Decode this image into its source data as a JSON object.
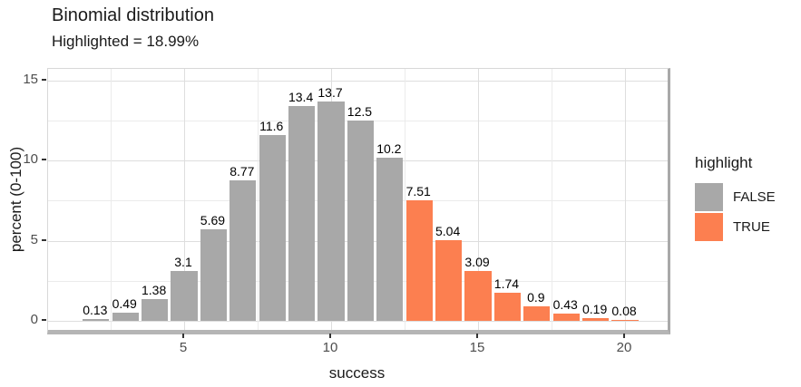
{
  "title": "Binomial distribution",
  "subtitle": "Highlighted = 18.99%",
  "chart_data": {
    "type": "bar",
    "title": "Binomial distribution",
    "subtitle": "Highlighted = 18.99%",
    "xlabel": "success",
    "ylabel": "percent (0-100)",
    "x": [
      2,
      3,
      4,
      5,
      6,
      7,
      8,
      9,
      10,
      11,
      12,
      13,
      14,
      15,
      16,
      17,
      18,
      19,
      20
    ],
    "values": [
      0.13,
      0.49,
      1.38,
      3.1,
      5.69,
      8.77,
      11.6,
      13.4,
      13.7,
      12.5,
      10.2,
      7.51,
      5.04,
      3.09,
      1.74,
      0.9,
      0.43,
      0.19,
      0.08
    ],
    "bar_labels": [
      "0.13",
      "0.49",
      "1.38",
      "3.1",
      "5.69",
      "8.77",
      "11.6",
      "13.4",
      "13.7",
      "12.5",
      "10.2",
      "7.51",
      "5.04",
      "3.09",
      "1.74",
      "0.9",
      "0.43",
      "0.19",
      "0.08"
    ],
    "highlight": [
      false,
      false,
      false,
      false,
      false,
      false,
      false,
      false,
      false,
      false,
      false,
      true,
      true,
      true,
      true,
      true,
      true,
      true,
      true
    ],
    "x_ticks": [
      5,
      10,
      15,
      20
    ],
    "y_ticks": [
      0,
      5,
      10,
      15
    ],
    "x_minor_ticks": [
      2.5,
      7.5,
      12.5,
      17.5
    ],
    "y_minor_ticks": [
      2.5,
      7.5,
      12.5
    ],
    "xlim": [
      0.37,
      21.45
    ],
    "ylim": [
      -0.57,
      15.73
    ],
    "bar_width": 0.9,
    "grid": true,
    "colors": {
      "false_fill": "#A8A8A8",
      "true_fill": "#FC7F50"
    },
    "legend": {
      "title": "highlight",
      "position": "right",
      "entries": [
        {
          "label": "FALSE",
          "color": "#A8A8A8"
        },
        {
          "label": "TRUE",
          "color": "#FC7F50"
        }
      ]
    }
  }
}
